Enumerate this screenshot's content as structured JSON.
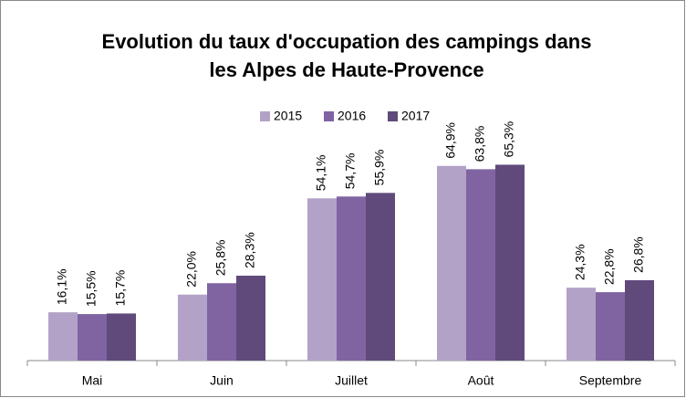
{
  "chart_data": {
    "type": "bar",
    "title": [
      "Evolution du taux d'occupation des campings dans",
      "les Alpes de Haute-Provence"
    ],
    "categories": [
      "Mai",
      "Juin",
      "Juillet",
      "Août",
      "Septembre"
    ],
    "series": [
      {
        "name": "2015",
        "color": "#b3a2c7",
        "values": [
          16.1,
          22.0,
          54.1,
          64.9,
          24.3
        ],
        "value_labels": [
          "16,1%",
          "22,0%",
          "54,1%",
          "64,9%",
          "24,3%"
        ]
      },
      {
        "name": "2016",
        "color": "#8064a2",
        "values": [
          15.5,
          25.8,
          54.7,
          63.8,
          22.8
        ],
        "value_labels": [
          "15,5%",
          "25,8%",
          "54,7%",
          "63,8%",
          "22,8%"
        ]
      },
      {
        "name": "2017",
        "color": "#604a7b",
        "values": [
          15.7,
          28.3,
          55.9,
          65.3,
          26.8
        ],
        "value_labels": [
          "15,7%",
          "28,3%",
          "55,9%",
          "65,3%",
          "26,8%"
        ]
      }
    ],
    "ylim": [
      0,
      70
    ],
    "legend": "top"
  }
}
